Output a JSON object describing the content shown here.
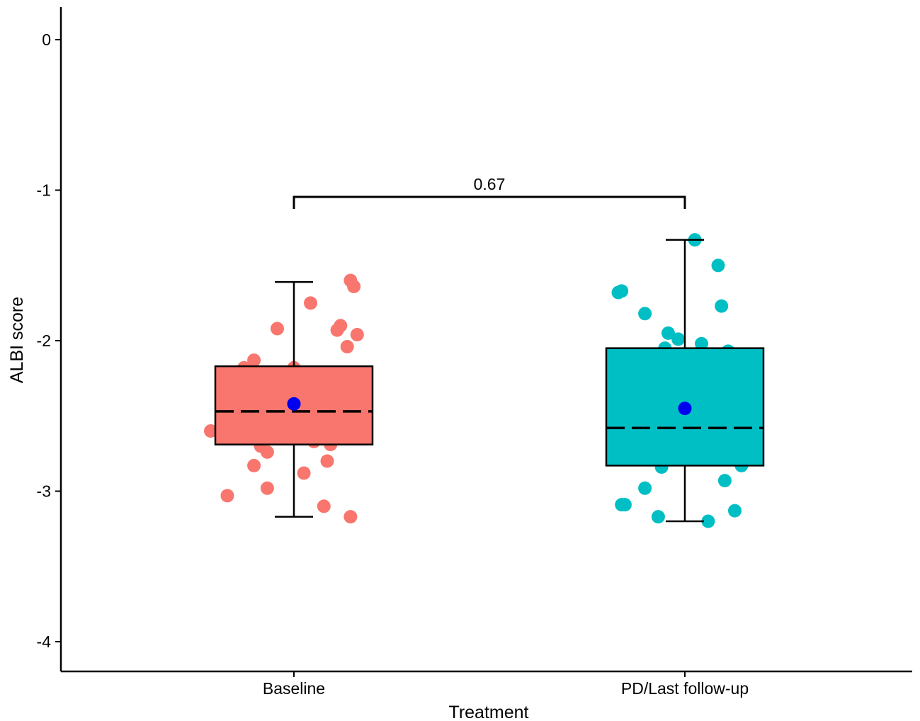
{
  "chart_data": {
    "type": "box",
    "xlabel": "Treatment",
    "ylabel": "ALBI score",
    "ylim": [
      -4.2,
      0.2
    ],
    "yticks": [
      0,
      -1,
      -2,
      -3,
      -4
    ],
    "ytick_labels": [
      "0",
      "-1",
      "-2",
      "-3",
      "-4"
    ],
    "categories": [
      "Baseline",
      "PD/Last follow-up"
    ],
    "grid": false,
    "legend": "none",
    "mean_color": "#0000ee",
    "groups": [
      {
        "category": "Baseline",
        "color": "#f8766d",
        "box": {
          "whisker_low": -3.17,
          "q1": -2.69,
          "median": -2.47,
          "q3": -2.17,
          "whisker_high": -1.61
        },
        "mean": -2.42,
        "points": [
          [
            -0.25,
            -2.6
          ],
          [
            -0.2,
            -3.03
          ],
          [
            -0.15,
            -2.18
          ],
          [
            -0.12,
            -2.83
          ],
          [
            -0.08,
            -2.74
          ],
          [
            -0.12,
            -2.13
          ],
          [
            -0.15,
            -2.3
          ],
          [
            -0.1,
            -2.7
          ],
          [
            -0.08,
            -2.98
          ],
          [
            -0.05,
            -2.5
          ],
          [
            -0.1,
            -2.57
          ],
          [
            -0.05,
            -2.55
          ],
          [
            -0.03,
            -2.38
          ],
          [
            -0.05,
            -1.92
          ],
          [
            0.0,
            -2.18
          ],
          [
            0.02,
            -2.43
          ],
          [
            0.03,
            -2.88
          ],
          [
            0.05,
            -2.51
          ],
          [
            0.05,
            -2.61
          ],
          [
            0.06,
            -2.67
          ],
          [
            0.05,
            -1.75
          ],
          [
            0.08,
            -2.55
          ],
          [
            0.09,
            -3.1
          ],
          [
            0.1,
            -2.8
          ],
          [
            0.11,
            -2.69
          ],
          [
            0.13,
            -1.93
          ],
          [
            0.14,
            -1.9
          ],
          [
            0.16,
            -2.04
          ],
          [
            0.17,
            -3.17
          ],
          [
            0.17,
            -1.6
          ],
          [
            0.18,
            -1.64
          ],
          [
            0.19,
            -1.96
          ],
          [
            0.16,
            -2.55
          ],
          [
            0.15,
            -2.3
          ]
        ]
      },
      {
        "category": "PD/Last follow-up",
        "color": "#00bfc4",
        "box": {
          "whisker_low": -3.2,
          "q1": -2.83,
          "median": -2.58,
          "q3": -2.05,
          "whisker_high": -1.33
        },
        "mean": -2.45,
        "points": [
          [
            -0.2,
            -1.68
          ],
          [
            -0.19,
            -1.67
          ],
          [
            -0.19,
            -3.09
          ],
          [
            -0.18,
            -3.09
          ],
          [
            -0.17,
            -2.36
          ],
          [
            -0.15,
            -2.57
          ],
          [
            -0.14,
            -2.6
          ],
          [
            -0.12,
            -1.82
          ],
          [
            -0.12,
            -2.98
          ],
          [
            -0.1,
            -2.4
          ],
          [
            -0.08,
            -3.17
          ],
          [
            -0.07,
            -2.84
          ],
          [
            -0.06,
            -2.05
          ],
          [
            -0.05,
            -1.95
          ],
          [
            -0.03,
            -2.78
          ],
          [
            -0.02,
            -1.99
          ],
          [
            -0.02,
            -2.56
          ],
          [
            0.0,
            -2.25
          ],
          [
            0.01,
            -2.72
          ],
          [
            0.03,
            -1.33
          ],
          [
            0.05,
            -2.02
          ],
          [
            0.07,
            -3.2
          ],
          [
            0.1,
            -1.5
          ],
          [
            0.11,
            -1.77
          ],
          [
            0.12,
            -2.93
          ],
          [
            0.13,
            -2.07
          ],
          [
            0.15,
            -2.25
          ],
          [
            0.15,
            -3.13
          ],
          [
            0.17,
            -2.83
          ],
          [
            0.19,
            -2.73
          ]
        ]
      }
    ],
    "annotations": [
      {
        "type": "bracket",
        "from": "Baseline",
        "to": "PD/Last follow-up",
        "y": -1.2,
        "label": "0.67"
      }
    ]
  }
}
